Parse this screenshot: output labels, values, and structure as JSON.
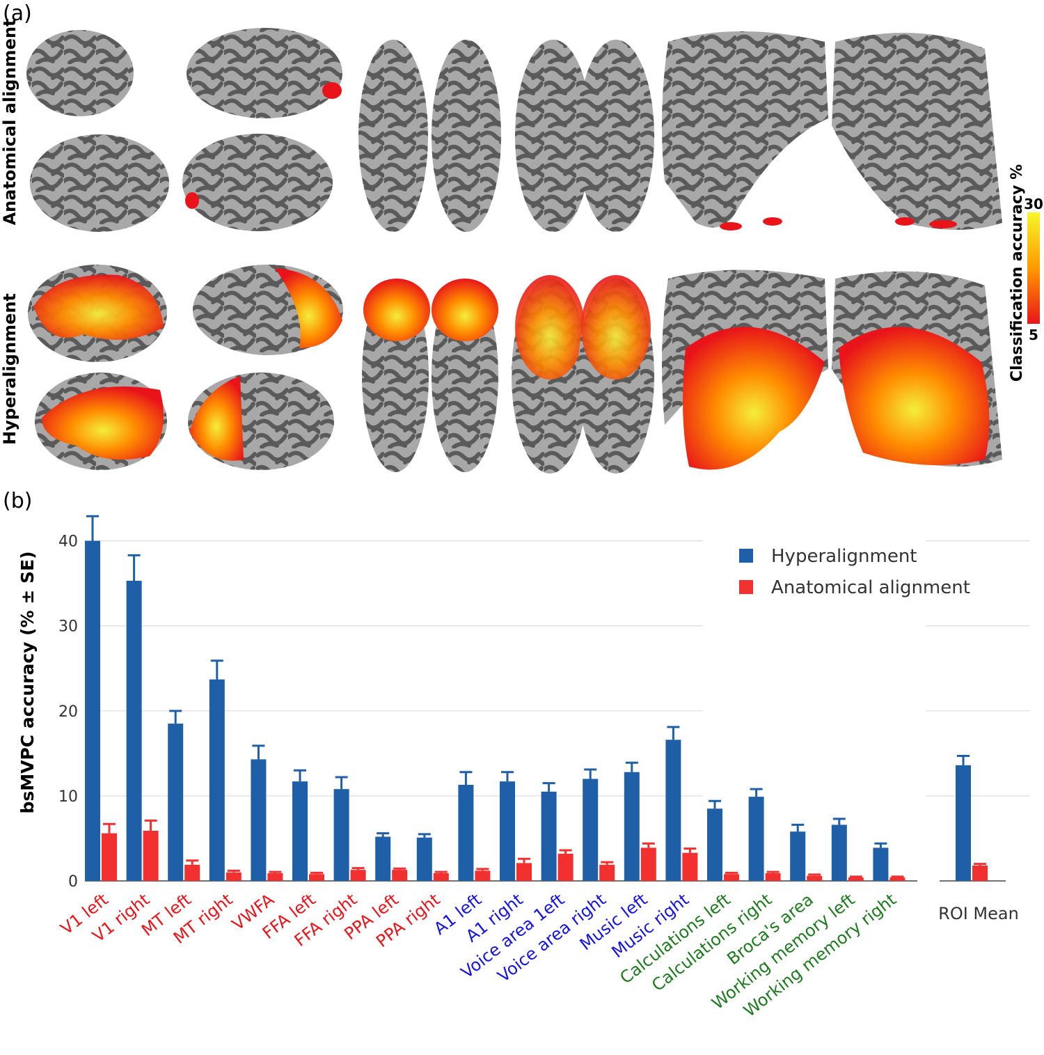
{
  "panel_a": {
    "label": "(a)",
    "row_labels": [
      "Anatomical alignment",
      "Hyperalignment"
    ],
    "colorbar": {
      "title": "Classification accuracy %",
      "max_label": "30",
      "min_label": "5",
      "colors": [
        "#e8141a",
        "#ff9a00",
        "#f6f72a"
      ]
    },
    "surface_colors": {
      "sulcus": "#5a5a5a",
      "gyrus": "#a8a8a8",
      "hot_low": "#e8141a",
      "hot_high": "#f4ee3a"
    }
  },
  "panel_b": {
    "label": "(b)"
  },
  "chart_data": {
    "type": "bar",
    "title": "",
    "xlabel": "",
    "ylabel": "bsMVPC accuracy (% ± SE)",
    "ylim": [
      0,
      43
    ],
    "yticks": [
      0,
      10,
      20,
      30,
      40
    ],
    "grid": true,
    "legend_position": "top-right",
    "categories": [
      "V1 left",
      "V1 right",
      "MT left",
      "MT right",
      "VWFA",
      "FFA left",
      "FFA right",
      "PPA left",
      "PPA right",
      "A1 left",
      "A1 right",
      "Voice area 1eft",
      "Voice area right",
      "Music left",
      "Music right",
      "Calculations left",
      "Calculations right",
      "Broca's area",
      "Working memory left",
      "Working memory right"
    ],
    "category_colors": [
      "#e8141a",
      "#e8141a",
      "#e8141a",
      "#e8141a",
      "#e8141a",
      "#e8141a",
      "#e8141a",
      "#e8141a",
      "#e8141a",
      "#1414e0",
      "#1414e0",
      "#1414e0",
      "#1414e0",
      "#1414e0",
      "#1414e0",
      "#1e7a1e",
      "#1e7a1e",
      "#1e7a1e",
      "#1e7a1e",
      "#1e7a1e"
    ],
    "series": [
      {
        "name": "Hyperalignment",
        "color": "#1f5fa8",
        "values": [
          40.0,
          35.3,
          18.5,
          23.7,
          14.3,
          11.7,
          10.8,
          5.2,
          5.1,
          11.3,
          11.7,
          10.5,
          12.0,
          12.8,
          16.6,
          8.5,
          9.9,
          5.8,
          6.6,
          3.9
        ],
        "errors": [
          2.9,
          3.0,
          1.5,
          2.2,
          1.6,
          1.3,
          1.4,
          0.4,
          0.4,
          1.5,
          1.1,
          1.0,
          1.1,
          1.1,
          1.5,
          0.9,
          0.9,
          0.8,
          0.7,
          0.5
        ]
      },
      {
        "name": "Anatomical alignment",
        "color": "#f23030",
        "values": [
          5.6,
          5.9,
          1.9,
          1.0,
          0.9,
          0.8,
          1.3,
          1.3,
          0.9,
          1.2,
          2.1,
          3.2,
          1.9,
          3.9,
          3.3,
          0.8,
          0.9,
          0.6,
          0.4,
          0.4
        ],
        "errors": [
          1.1,
          1.2,
          0.5,
          0.2,
          0.15,
          0.15,
          0.2,
          0.15,
          0.15,
          0.2,
          0.5,
          0.4,
          0.3,
          0.5,
          0.5,
          0.15,
          0.15,
          0.15,
          0.1,
          0.1
        ]
      }
    ],
    "summary": {
      "category": "ROI Mean",
      "values": [
        13.6,
        1.8
      ],
      "errors": [
        1.1,
        0.2
      ]
    }
  }
}
